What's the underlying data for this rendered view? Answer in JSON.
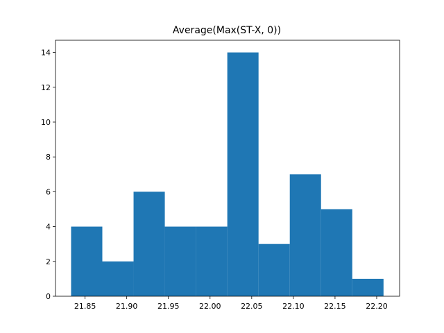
{
  "chart_data": {
    "type": "bar",
    "title": "Average(Max(ST-X, 0))",
    "xlabel": "",
    "ylabel": "",
    "grid": false,
    "xlim": [
      21.8145,
      22.2275
    ],
    "ylim": [
      0,
      14.7
    ],
    "bin_edges": [
      21.8332,
      21.8707,
      21.9082,
      21.9457,
      21.9832,
      22.0207,
      22.0582,
      22.0957,
      22.1332,
      22.1707,
      22.2082
    ],
    "values": [
      4,
      2,
      6,
      4,
      4,
      14,
      3,
      7,
      5,
      1
    ],
    "x_ticks": [
      21.85,
      21.9,
      21.95,
      22.0,
      22.05,
      22.1,
      22.15,
      22.2
    ],
    "x_tick_labels": [
      "21.85",
      "21.90",
      "21.95",
      "22.00",
      "22.05",
      "22.10",
      "22.15",
      "22.20"
    ],
    "y_ticks": [
      0,
      2,
      4,
      6,
      8,
      10,
      12,
      14
    ],
    "y_tick_labels": [
      "0",
      "2",
      "4",
      "6",
      "8",
      "10",
      "12",
      "14"
    ],
    "bar_color": "#1f77b4"
  }
}
